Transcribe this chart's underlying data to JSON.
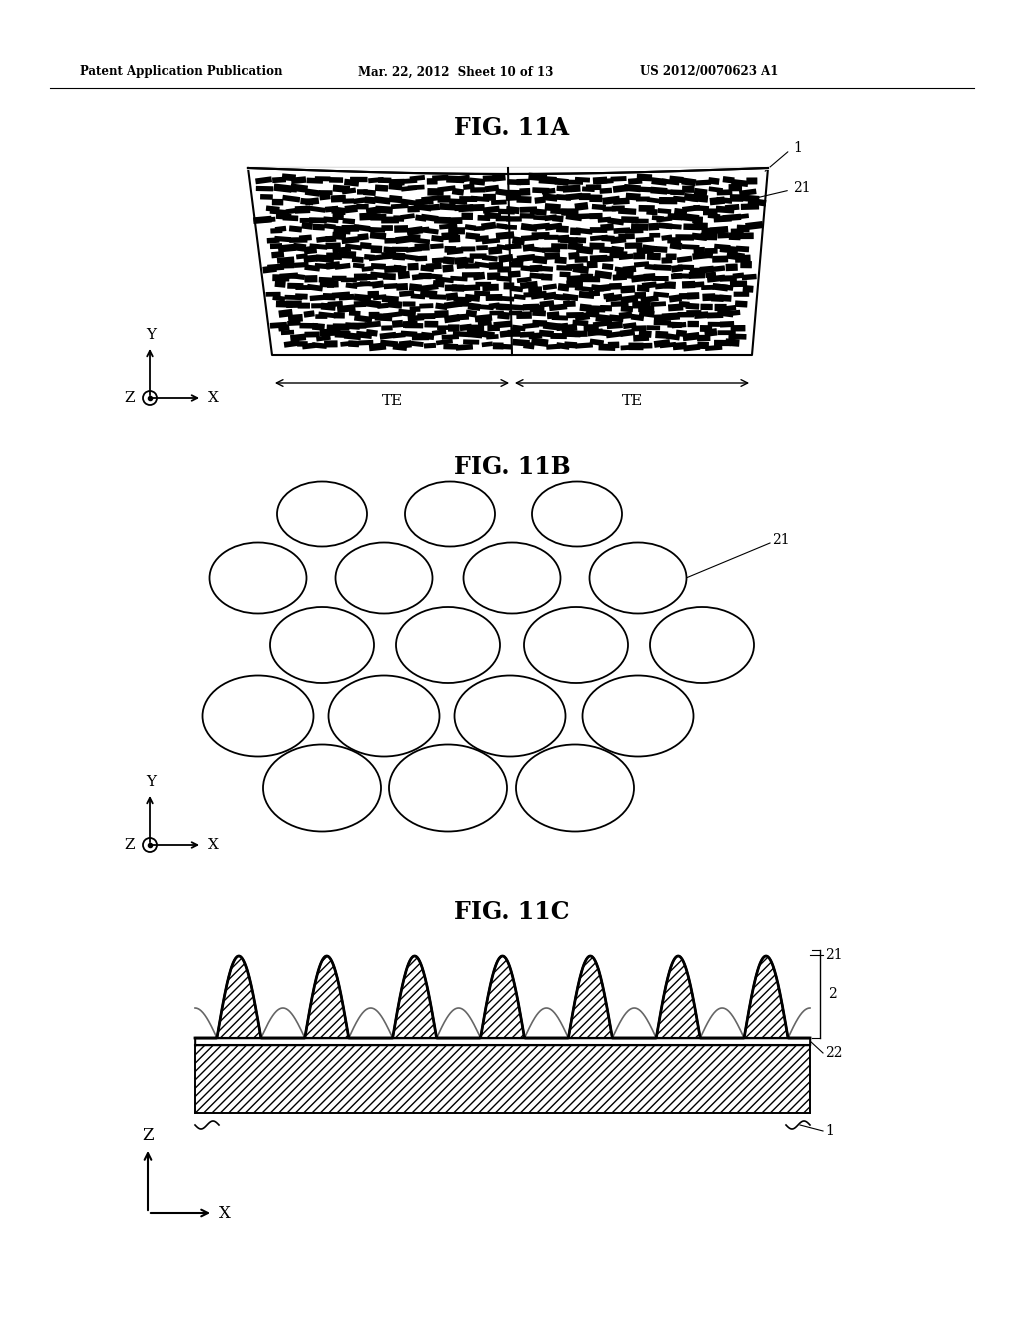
{
  "header_left": "Patent Application Publication",
  "header_mid": "Mar. 22, 2012  Sheet 10 of 13",
  "header_right": "US 2012/0070623 A1",
  "fig11a_title": "FIG. 11A",
  "fig11b_title": "FIG. 11B",
  "fig11c_title": "FIG. 11C",
  "bg_color": "#ffffff",
  "line_color": "#000000"
}
